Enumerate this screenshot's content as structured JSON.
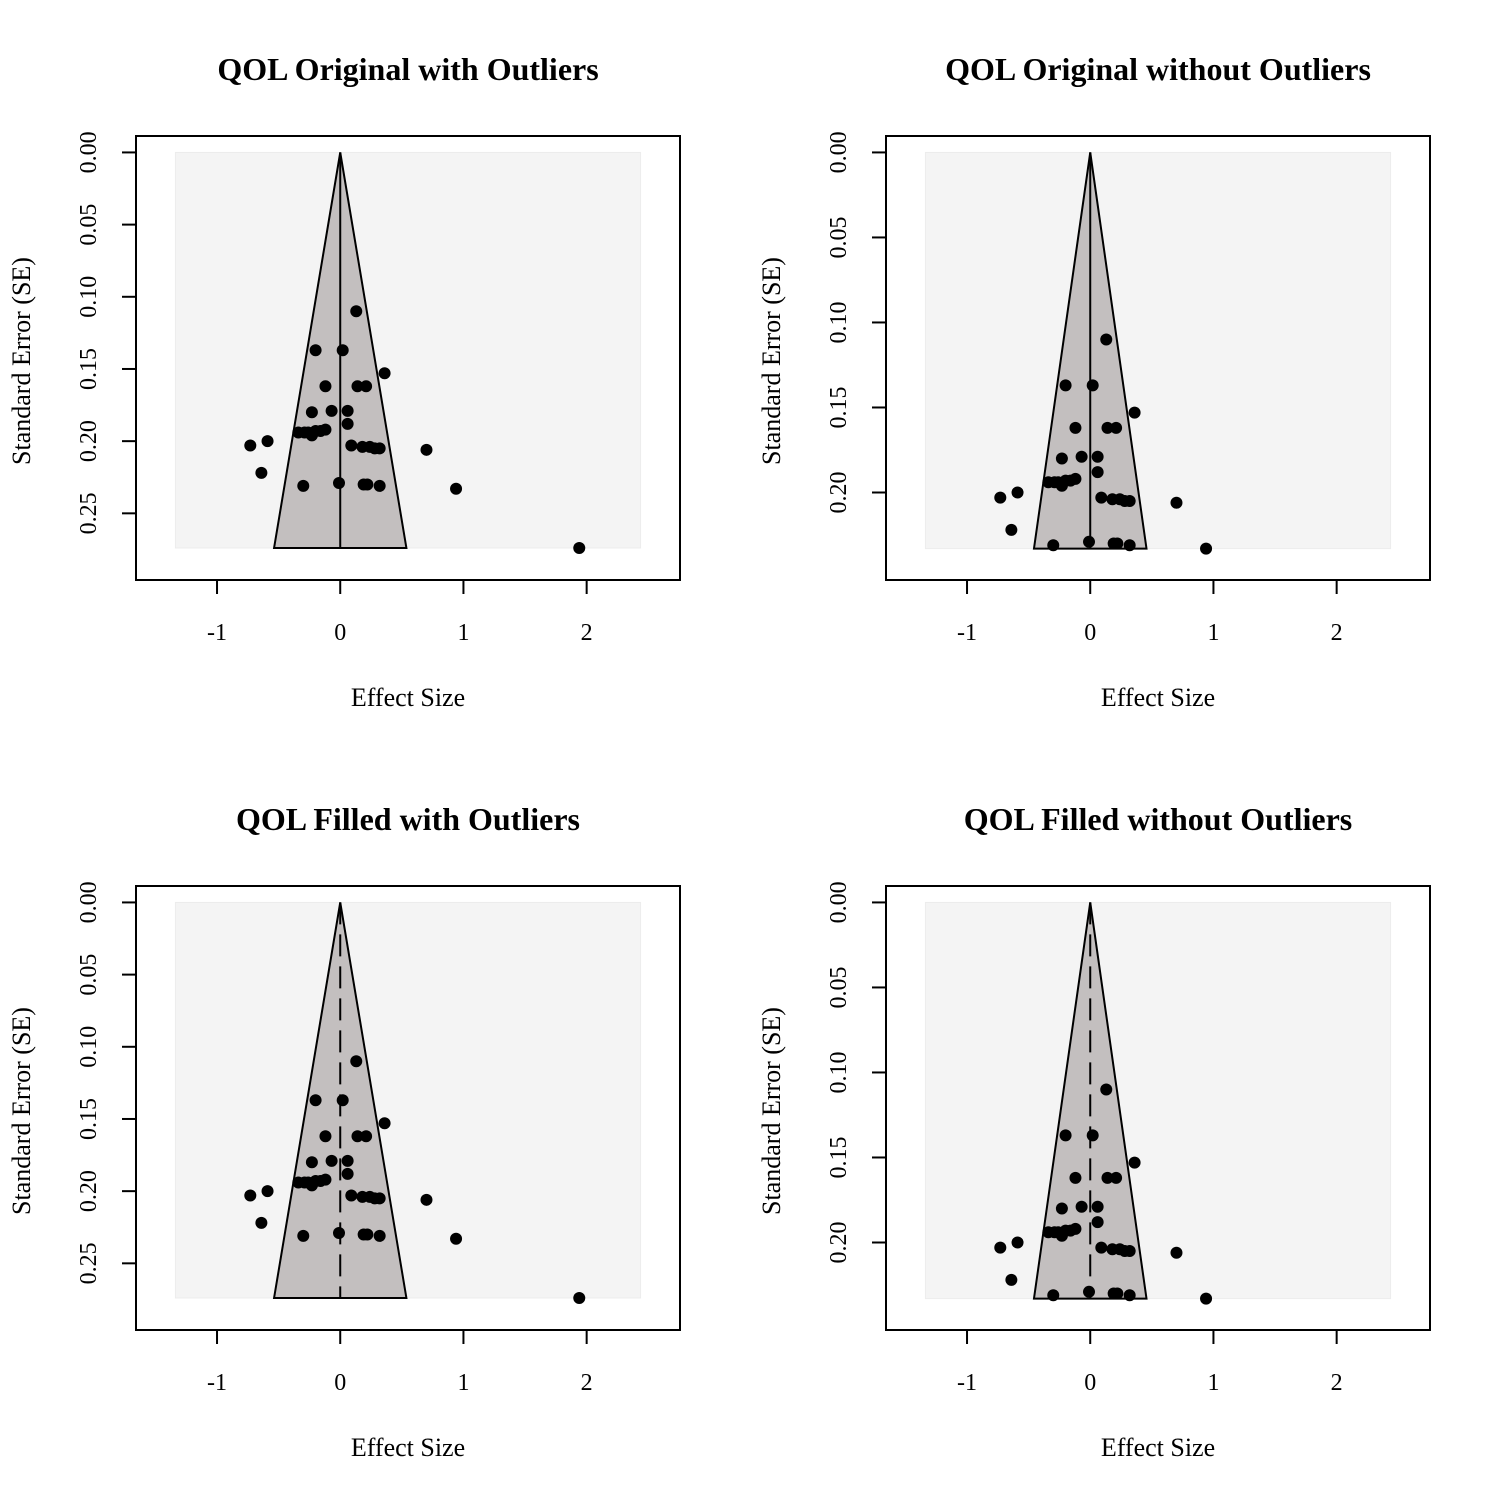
{
  "colors": {
    "funnel_fill": "#c3bfbf",
    "inner_region": "#f4f4f4",
    "point": "#000000",
    "axis": "#000000"
  },
  "chart_data": [
    {
      "type": "scatter",
      "subtype": "funnel",
      "title": "QOL Original with Outliers",
      "xlabel": "Effect Size",
      "ylabel": "Standard Error (SE)",
      "xlim": [
        -1.5,
        2.6
      ],
      "ylim": [
        0,
        0.2848
      ],
      "y_reversed": true,
      "x_ticks": [
        "-1",
        "0",
        "1",
        "2"
      ],
      "y_ticks": [
        "0.00",
        "0.05",
        "0.10",
        "0.15",
        "0.20",
        "0.25"
      ],
      "funnel_center": 0,
      "funnel_max_se": 0.274,
      "center_line": "solid",
      "points": [
        [
          0.13,
          0.11
        ],
        [
          -0.2,
          0.137
        ],
        [
          0.02,
          0.137
        ],
        [
          0.36,
          0.153
        ],
        [
          -0.12,
          0.162
        ],
        [
          0.14,
          0.162
        ],
        [
          0.21,
          0.162
        ],
        [
          -0.23,
          0.18
        ],
        [
          -0.07,
          0.179
        ],
        [
          0.06,
          0.179
        ],
        [
          0.06,
          0.188
        ],
        [
          -0.34,
          0.194
        ],
        [
          -0.29,
          0.194
        ],
        [
          -0.26,
          0.194
        ],
        [
          -0.23,
          0.196
        ],
        [
          -0.2,
          0.193
        ],
        [
          -0.16,
          0.193
        ],
        [
          -0.12,
          0.192
        ],
        [
          -0.59,
          0.2
        ],
        [
          -0.73,
          0.203
        ],
        [
          0.09,
          0.203
        ],
        [
          0.18,
          0.204
        ],
        [
          0.24,
          0.204
        ],
        [
          0.28,
          0.205
        ],
        [
          0.32,
          0.205
        ],
        [
          0.7,
          0.206
        ],
        [
          -0.64,
          0.222
        ],
        [
          -0.3,
          0.231
        ],
        [
          -0.01,
          0.229
        ],
        [
          0.19,
          0.23
        ],
        [
          0.22,
          0.23
        ],
        [
          0.32,
          0.231
        ],
        [
          0.94,
          0.233
        ],
        [
          1.94,
          0.274
        ]
      ]
    },
    {
      "type": "scatter",
      "subtype": "funnel",
      "title": "QOL Original without Outliers",
      "xlabel": "Effect Size",
      "ylabel": "Standard Error (SE)",
      "xlim": [
        -1.5,
        2.6
      ],
      "ylim": [
        0,
        0.2418
      ],
      "y_reversed": true,
      "x_ticks": [
        "-1",
        "0",
        "1",
        "2"
      ],
      "y_ticks": [
        "0.00",
        "0.05",
        "0.10",
        "0.15",
        "0.20"
      ],
      "funnel_center": 0,
      "funnel_max_se": 0.233,
      "center_line": "solid",
      "points": [
        [
          0.13,
          0.11
        ],
        [
          -0.2,
          0.137
        ],
        [
          0.02,
          0.137
        ],
        [
          0.36,
          0.153
        ],
        [
          -0.12,
          0.162
        ],
        [
          0.14,
          0.162
        ],
        [
          0.21,
          0.162
        ],
        [
          -0.23,
          0.18
        ],
        [
          -0.07,
          0.179
        ],
        [
          0.06,
          0.179
        ],
        [
          0.06,
          0.188
        ],
        [
          -0.34,
          0.194
        ],
        [
          -0.29,
          0.194
        ],
        [
          -0.26,
          0.194
        ],
        [
          -0.23,
          0.196
        ],
        [
          -0.2,
          0.193
        ],
        [
          -0.16,
          0.193
        ],
        [
          -0.12,
          0.192
        ],
        [
          -0.59,
          0.2
        ],
        [
          -0.73,
          0.203
        ],
        [
          0.09,
          0.203
        ],
        [
          0.18,
          0.204
        ],
        [
          0.24,
          0.204
        ],
        [
          0.28,
          0.205
        ],
        [
          0.32,
          0.205
        ],
        [
          0.7,
          0.206
        ],
        [
          -0.64,
          0.222
        ],
        [
          -0.3,
          0.231
        ],
        [
          -0.01,
          0.229
        ],
        [
          0.19,
          0.23
        ],
        [
          0.22,
          0.23
        ],
        [
          0.32,
          0.231
        ],
        [
          0.94,
          0.233
        ]
      ]
    },
    {
      "type": "scatter",
      "subtype": "funnel",
      "title": "QOL Filled with Outliers",
      "xlabel": "Effect Size",
      "ylabel": "Standard Error (SE)",
      "xlim": [
        -1.5,
        2.6
      ],
      "ylim": [
        0,
        0.2848
      ],
      "y_reversed": true,
      "x_ticks": [
        "-1",
        "0",
        "1",
        "2"
      ],
      "y_ticks": [
        "0.00",
        "0.05",
        "0.10",
        "0.15",
        "0.20",
        "0.25"
      ],
      "funnel_center": 0,
      "funnel_max_se": 0.274,
      "center_line": "dashed",
      "points": [
        [
          0.13,
          0.11
        ],
        [
          -0.2,
          0.137
        ],
        [
          0.02,
          0.137
        ],
        [
          0.36,
          0.153
        ],
        [
          -0.12,
          0.162
        ],
        [
          0.14,
          0.162
        ],
        [
          0.21,
          0.162
        ],
        [
          -0.23,
          0.18
        ],
        [
          -0.07,
          0.179
        ],
        [
          0.06,
          0.179
        ],
        [
          0.06,
          0.188
        ],
        [
          -0.34,
          0.194
        ],
        [
          -0.29,
          0.194
        ],
        [
          -0.26,
          0.194
        ],
        [
          -0.23,
          0.196
        ],
        [
          -0.2,
          0.193
        ],
        [
          -0.16,
          0.193
        ],
        [
          -0.12,
          0.192
        ],
        [
          -0.59,
          0.2
        ],
        [
          -0.73,
          0.203
        ],
        [
          0.09,
          0.203
        ],
        [
          0.18,
          0.204
        ],
        [
          0.24,
          0.204
        ],
        [
          0.28,
          0.205
        ],
        [
          0.32,
          0.205
        ],
        [
          0.7,
          0.206
        ],
        [
          -0.64,
          0.222
        ],
        [
          -0.3,
          0.231
        ],
        [
          -0.01,
          0.229
        ],
        [
          0.19,
          0.23
        ],
        [
          0.22,
          0.23
        ],
        [
          0.32,
          0.231
        ],
        [
          0.94,
          0.233
        ],
        [
          1.94,
          0.274
        ]
      ]
    },
    {
      "type": "scatter",
      "subtype": "funnel",
      "title": "QOL Filled without Outliers",
      "xlabel": "Effect Size",
      "ylabel": "Standard Error (SE)",
      "xlim": [
        -1.5,
        2.6
      ],
      "ylim": [
        0,
        0.2418
      ],
      "y_reversed": true,
      "x_ticks": [
        "-1",
        "0",
        "1",
        "2"
      ],
      "y_ticks": [
        "0.00",
        "0.05",
        "0.10",
        "0.15",
        "0.20"
      ],
      "funnel_center": 0,
      "funnel_max_se": 0.233,
      "center_line": "dashed",
      "points": [
        [
          0.13,
          0.11
        ],
        [
          -0.2,
          0.137
        ],
        [
          0.02,
          0.137
        ],
        [
          0.36,
          0.153
        ],
        [
          -0.12,
          0.162
        ],
        [
          0.14,
          0.162
        ],
        [
          0.21,
          0.162
        ],
        [
          -0.23,
          0.18
        ],
        [
          -0.07,
          0.179
        ],
        [
          0.06,
          0.179
        ],
        [
          0.06,
          0.188
        ],
        [
          -0.34,
          0.194
        ],
        [
          -0.29,
          0.194
        ],
        [
          -0.26,
          0.194
        ],
        [
          -0.23,
          0.196
        ],
        [
          -0.2,
          0.193
        ],
        [
          -0.16,
          0.193
        ],
        [
          -0.12,
          0.192
        ],
        [
          -0.59,
          0.2
        ],
        [
          -0.73,
          0.203
        ],
        [
          0.09,
          0.203
        ],
        [
          0.18,
          0.204
        ],
        [
          0.24,
          0.204
        ],
        [
          0.28,
          0.205
        ],
        [
          0.32,
          0.205
        ],
        [
          0.7,
          0.206
        ],
        [
          -0.64,
          0.222
        ],
        [
          -0.3,
          0.231
        ],
        [
          -0.01,
          0.229
        ],
        [
          0.19,
          0.23
        ],
        [
          0.22,
          0.23
        ],
        [
          0.32,
          0.231
        ],
        [
          0.94,
          0.233
        ]
      ]
    }
  ]
}
